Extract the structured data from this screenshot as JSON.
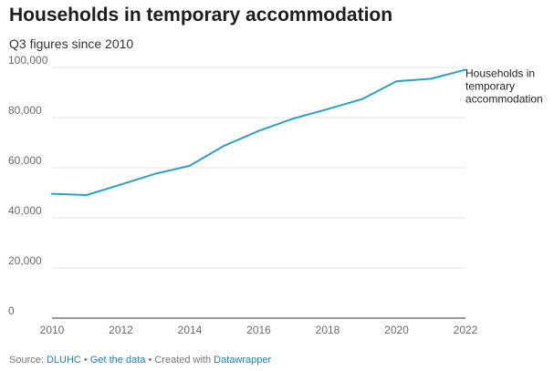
{
  "header": {
    "title": "Households in temporary accommodation",
    "subtitle": "Q3 figures since 2010"
  },
  "footer": {
    "source_prefix": "Source: ",
    "source_link": "DLUHC",
    "sep1": " • ",
    "data_link": "Get the data",
    "sep2": " • Created with ",
    "tool_link": "Datawrapper"
  },
  "colors": {
    "line": "#2aa0c7",
    "grid": "#e6e6e6",
    "axis": "#333333",
    "link": "#1f7fbf"
  },
  "chart_data": {
    "type": "line",
    "title": "Households in temporary accommodation",
    "subtitle": "Q3 figures since 2010",
    "x": [
      2010,
      2011,
      2012,
      2013,
      2014,
      2015,
      2016,
      2017,
      2018,
      2019,
      2020,
      2021,
      2022
    ],
    "series": [
      {
        "name": "Households in temporary accommodation",
        "label_lines": [
          "Households in",
          "temporary",
          "accommodation"
        ],
        "values": [
          49600,
          49100,
          53300,
          57600,
          60800,
          68800,
          74700,
          79600,
          83400,
          87400,
          94500,
          95500,
          99100
        ]
      }
    ],
    "xlim": [
      2010,
      2022
    ],
    "ylim": [
      0,
      100000
    ],
    "x_ticks": [
      2010,
      2012,
      2014,
      2016,
      2018,
      2020,
      2022
    ],
    "y_ticks": [
      0,
      20000,
      40000,
      60000,
      80000,
      100000
    ],
    "y_tick_labels": [
      "0",
      "20,000",
      "40,000",
      "60,000",
      "80,000",
      "100,000"
    ],
    "grid": true,
    "legend": "inline label at line end"
  }
}
